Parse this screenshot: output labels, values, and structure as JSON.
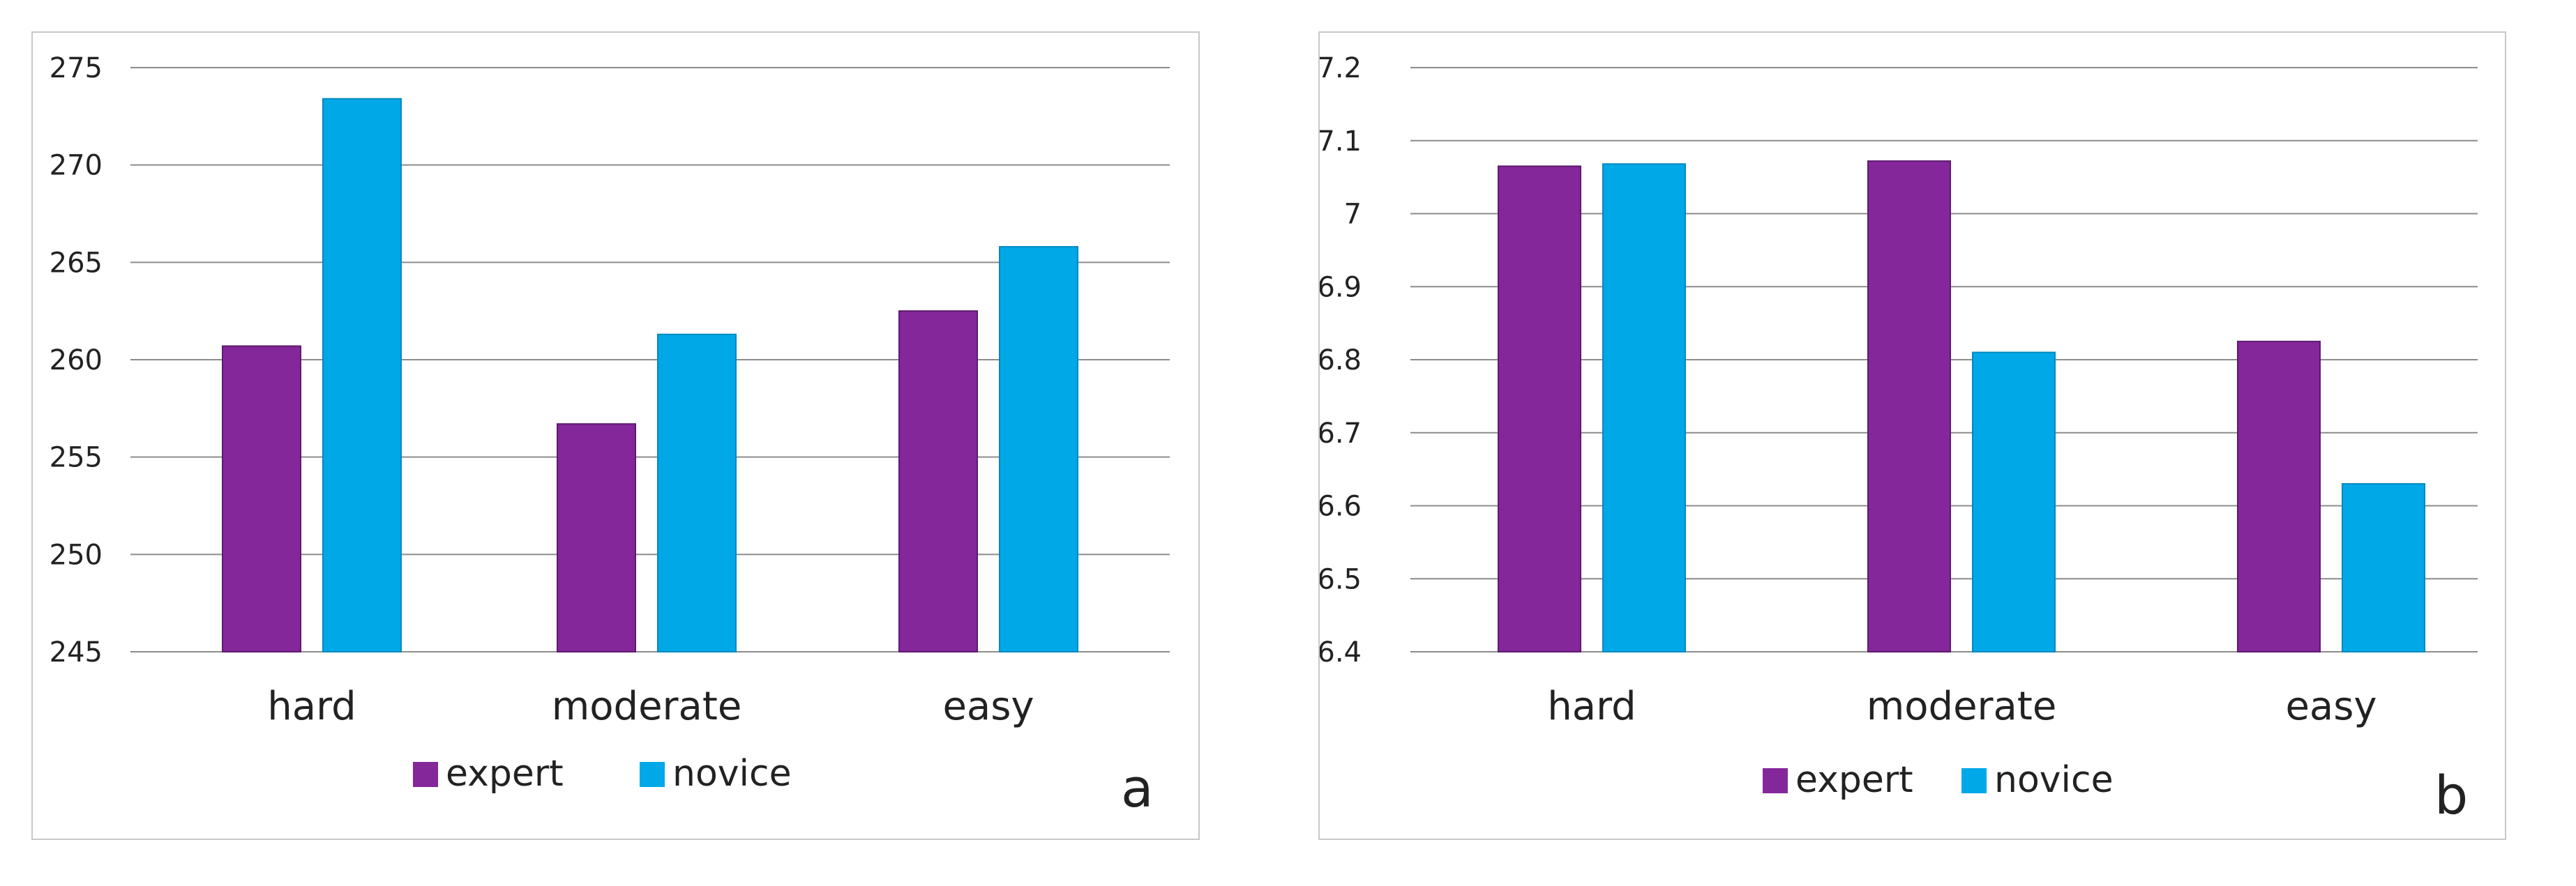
{
  "chart_data": [
    {
      "type": "bar",
      "panel_label": "a",
      "categories": [
        "hard",
        "moderate",
        "easy"
      ],
      "series": [
        {
          "name": "expert",
          "values": [
            260.7,
            256.7,
            262.5
          ]
        },
        {
          "name": "novice",
          "values": [
            273.4,
            261.3,
            265.8
          ]
        }
      ],
      "ylim": [
        245,
        275
      ],
      "yticks": [
        "245",
        "250",
        "255",
        "260",
        "265",
        "270",
        "275"
      ],
      "grid": true,
      "legend": "bottom",
      "colors": {
        "expert": "#84279a",
        "novice": "#00a8e8"
      }
    },
    {
      "type": "bar",
      "panel_label": "b",
      "categories": [
        "hard",
        "moderate",
        "easy"
      ],
      "series": [
        {
          "name": "expert",
          "values": [
            7.065,
            7.072,
            6.825
          ]
        },
        {
          "name": "novice",
          "values": [
            7.068,
            6.81,
            6.63
          ]
        }
      ],
      "ylim": [
        6.4,
        7.2
      ],
      "yticks": [
        "6.4",
        "6.5",
        "6.6",
        "6.7",
        "6.8",
        "6.9",
        "7",
        "7.1",
        "7.2"
      ],
      "grid": true,
      "legend": "bottom",
      "colors": {
        "expert": "#84279a",
        "novice": "#00a8e8"
      }
    }
  ]
}
